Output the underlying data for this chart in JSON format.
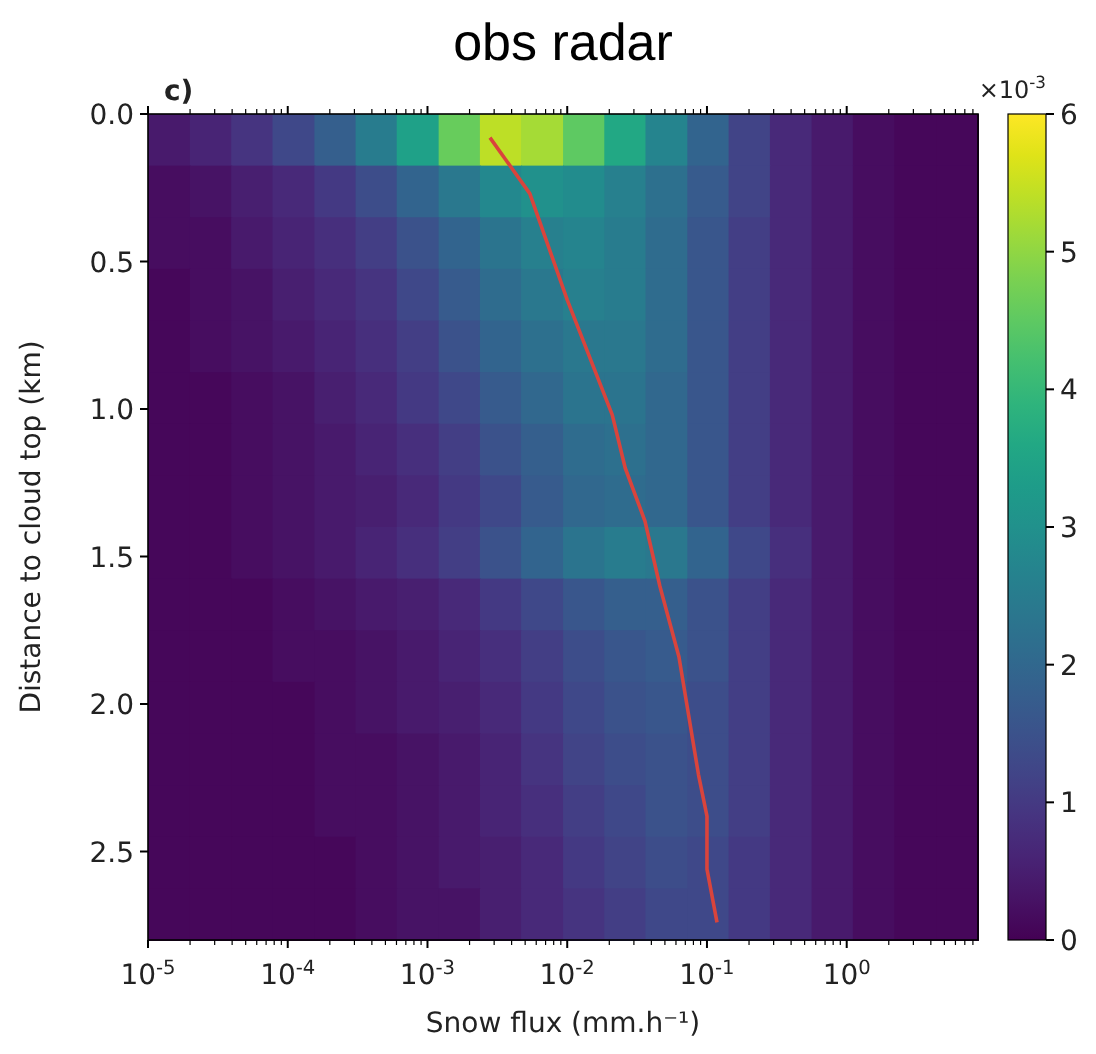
{
  "chart_data": {
    "type": "heatmap",
    "title": "obs radar",
    "xlabel": "Snow flux (mm.h⁻¹)",
    "ylabel": "Distance to cloud top (km)",
    "annotations": [
      "c)",
      "×10$^{-3}$"
    ],
    "log": "x",
    "xlim": [
      1e-05,
      8.7
    ],
    "xticks": [
      {
        "value": 1e-05,
        "label": "10$^{-5}$"
      },
      {
        "value": 0.0001,
        "label": "10$^{-4}$"
      },
      {
        "value": 0.001,
        "label": "10$^{-3}$"
      },
      {
        "value": 0.01,
        "label": "10$^{-2}$"
      },
      {
        "value": 0.1,
        "label": "10$^{-1}$"
      },
      {
        "value": 1,
        "label": "10$^{0}$"
      }
    ],
    "ylim": [
      2.8,
      0
    ],
    "yticks": [
      {
        "value": 0,
        "label": "0.0"
      },
      0.5,
      {
        "value": 1,
        "label": "1.0"
      },
      1.5,
      {
        "value": 2,
        "label": "2.0"
      },
      2.5
    ],
    "clim": [
      0,
      6
    ],
    "cticks": [
      0,
      1,
      2,
      3,
      4,
      5,
      6
    ],
    "x": [
      1.41e-05,
      2.82e-05,
      5.5e-05,
      0.00011,
      0.000219,
      0.000427,
      0.00085,
      0.0017,
      0.00331,
      0.0066,
      0.0132,
      0.0257,
      0.0513,
      0.102,
      0.2,
      0.398,
      0.79,
      1.55,
      3.09,
      6.17
    ],
    "cells": [
      [
        0.4,
        0.6,
        0.9,
        1.3,
        1.8,
        2.5,
        3.4,
        4.6,
        5.4,
        5.2,
        4.5,
        3.6,
        2.7,
        1.9,
        1.2,
        0.7,
        0.4,
        0.2,
        0.1,
        0.1
      ],
      [
        0.2,
        0.3,
        0.5,
        0.7,
        1.0,
        1.4,
        1.9,
        2.4,
        2.8,
        3.0,
        2.9,
        2.6,
        2.2,
        1.7,
        1.2,
        0.7,
        0.4,
        0.2,
        0.1,
        0.1
      ],
      [
        0.2,
        0.2,
        0.4,
        0.6,
        0.8,
        1.1,
        1.5,
        1.9,
        2.3,
        2.6,
        2.7,
        2.5,
        2.1,
        1.6,
        1.1,
        0.7,
        0.4,
        0.2,
        0.1,
        0.1
      ],
      [
        0.1,
        0.2,
        0.3,
        0.5,
        0.7,
        0.9,
        1.3,
        1.7,
        2.1,
        2.4,
        2.6,
        2.5,
        2.1,
        1.6,
        1.1,
        0.7,
        0.4,
        0.2,
        0.1,
        0.1
      ],
      [
        0.1,
        0.2,
        0.3,
        0.4,
        0.6,
        0.8,
        1.1,
        1.5,
        1.9,
        2.2,
        2.4,
        2.4,
        2.1,
        1.6,
        1.1,
        0.7,
        0.4,
        0.2,
        0.1,
        0.1
      ],
      [
        0.1,
        0.1,
        0.2,
        0.3,
        0.5,
        0.7,
        1.0,
        1.3,
        1.7,
        2.0,
        2.3,
        2.3,
        2.0,
        1.6,
        1.1,
        0.7,
        0.4,
        0.2,
        0.1,
        0.1
      ],
      [
        0.1,
        0.1,
        0.2,
        0.3,
        0.4,
        0.6,
        0.8,
        1.1,
        1.5,
        1.8,
        2.1,
        2.2,
        2.0,
        1.6,
        1.1,
        0.7,
        0.4,
        0.2,
        0.1,
        0.1
      ],
      [
        0.1,
        0.1,
        0.2,
        0.3,
        0.4,
        0.5,
        0.7,
        1.0,
        1.3,
        1.7,
        2.0,
        2.1,
        2.0,
        1.6,
        1.1,
        0.7,
        0.4,
        0.2,
        0.1,
        0.1
      ],
      [
        0.1,
        0.1,
        0.2,
        0.3,
        0.4,
        0.6,
        0.8,
        1.1,
        1.5,
        1.9,
        2.3,
        2.5,
        2.4,
        1.9,
        1.3,
        0.8,
        0.4,
        0.2,
        0.1,
        0.1
      ],
      [
        0.1,
        0.1,
        0.1,
        0.2,
        0.3,
        0.4,
        0.5,
        0.7,
        1.0,
        1.3,
        1.6,
        1.8,
        1.8,
        1.5,
        1.1,
        0.7,
        0.4,
        0.2,
        0.1,
        0.1
      ],
      [
        0.1,
        0.1,
        0.1,
        0.2,
        0.2,
        0.3,
        0.4,
        0.6,
        0.8,
        1.1,
        1.4,
        1.6,
        1.7,
        1.5,
        1.1,
        0.7,
        0.4,
        0.2,
        0.1,
        0.1
      ],
      [
        0.1,
        0.1,
        0.1,
        0.1,
        0.2,
        0.3,
        0.4,
        0.5,
        0.7,
        1.0,
        1.3,
        1.5,
        1.6,
        1.4,
        1.1,
        0.7,
        0.4,
        0.2,
        0.1,
        0.1
      ],
      [
        0.1,
        0.1,
        0.1,
        0.1,
        0.2,
        0.2,
        0.3,
        0.4,
        0.6,
        0.9,
        1.2,
        1.4,
        1.5,
        1.4,
        1.1,
        0.7,
        0.4,
        0.2,
        0.1,
        0.1
      ],
      [
        0.1,
        0.1,
        0.1,
        0.1,
        0.2,
        0.2,
        0.3,
        0.4,
        0.6,
        0.8,
        1.1,
        1.3,
        1.5,
        1.4,
        1.1,
        0.7,
        0.4,
        0.2,
        0.1,
        0.1
      ],
      [
        0.1,
        0.1,
        0.1,
        0.1,
        0.1,
        0.2,
        0.3,
        0.4,
        0.5,
        0.7,
        1.0,
        1.2,
        1.4,
        1.3,
        1.0,
        0.7,
        0.4,
        0.2,
        0.1,
        0.1
      ],
      [
        0.1,
        0.1,
        0.1,
        0.1,
        0.1,
        0.2,
        0.3,
        0.3,
        0.5,
        0.7,
        0.9,
        1.1,
        1.3,
        1.3,
        1.0,
        0.7,
        0.4,
        0.2,
        0.1,
        0.1
      ]
    ],
    "series": [
      {
        "type": "line",
        "color": "#d9443c",
        "x": [
          0.0028,
          0.0054,
          0.01,
          0.021,
          0.026,
          0.036,
          0.046,
          0.063,
          0.087,
          0.1,
          0.1,
          0.118
        ],
        "values": [
          0.08,
          0.27,
          0.63,
          1.02,
          1.2,
          1.38,
          1.6,
          1.84,
          2.24,
          2.38,
          2.56,
          2.74
        ]
      }
    ]
  }
}
